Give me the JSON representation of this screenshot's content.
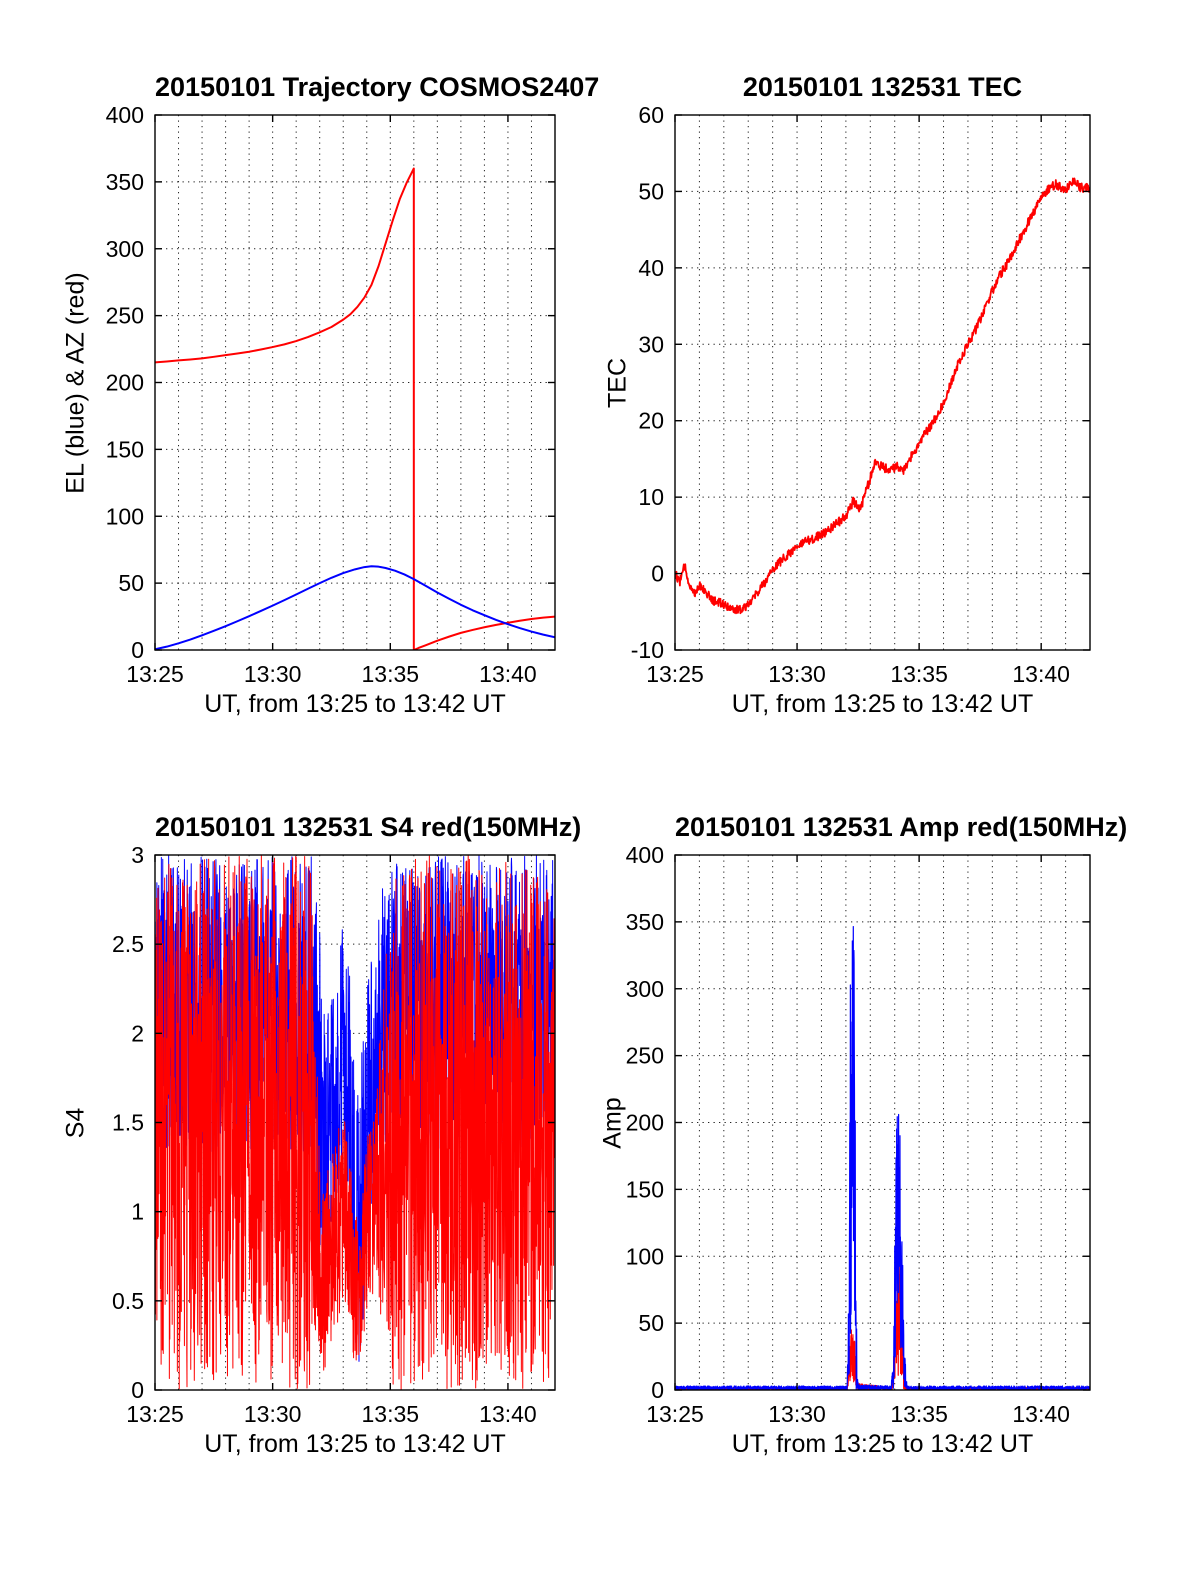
{
  "figure": {
    "background": "#ffffff",
    "axis_color": "#000000",
    "grid_color": "#222222"
  },
  "chart_data": [
    {
      "id": "trajectory",
      "type": "line",
      "title": "20150101 Trajectory COSMOS2407",
      "xlabel": "UT, from 13:25 to 13:42 UT",
      "ylabel": "EL (blue) & AZ (red)",
      "x_unit": "minutes_after_midnight",
      "xlim": [
        805,
        822
      ],
      "ylim": [
        0,
        400
      ],
      "yticks": [
        0,
        50,
        100,
        150,
        200,
        250,
        300,
        350,
        400
      ],
      "xticks": [
        {
          "v": 805,
          "label": "13:25"
        },
        {
          "v": 810,
          "label": "13:30"
        },
        {
          "v": 815,
          "label": "13:35"
        },
        {
          "v": 820,
          "label": "13:40"
        }
      ],
      "minor_x_step": 1,
      "series": [
        {
          "name": "AZ",
          "color": "#ff0000",
          "width": 2,
          "points": [
            [
              805,
              215
            ],
            [
              805.5,
              215.7
            ],
            [
              806,
              216.5
            ],
            [
              806.5,
              217.2
            ],
            [
              807,
              218
            ],
            [
              807.5,
              219.2
            ],
            [
              808,
              220.5
            ],
            [
              808.5,
              221.7
            ],
            [
              809,
              223
            ],
            [
              809.5,
              224.7
            ],
            [
              810,
              226.5
            ],
            [
              810.5,
              228.5
            ],
            [
              811,
              231
            ],
            [
              811.5,
              234
            ],
            [
              812,
              237.5
            ],
            [
              812.5,
              241.5
            ],
            [
              813,
              247
            ],
            [
              813.3,
              251
            ],
            [
              813.6,
              256.5
            ],
            [
              813.9,
              263.5
            ],
            [
              814.2,
              273
            ],
            [
              814.5,
              287
            ],
            [
              814.8,
              304
            ],
            [
              815.1,
              321
            ],
            [
              815.4,
              337
            ],
            [
              815.7,
              349.5
            ],
            [
              815.9,
              356.5
            ],
            [
              816,
              360
            ],
            [
              816,
              0
            ],
            [
              816.2,
              1.5
            ],
            [
              816.5,
              3.5
            ],
            [
              817,
              7
            ],
            [
              817.5,
              10
            ],
            [
              818,
              12.8
            ],
            [
              818.5,
              15
            ],
            [
              819,
              17
            ],
            [
              819.5,
              18.8
            ],
            [
              820,
              20.4
            ],
            [
              820.5,
              21.9
            ],
            [
              821,
              23.2
            ],
            [
              821.5,
              24.2
            ],
            [
              822,
              25
            ]
          ]
        },
        {
          "name": "EL",
          "color": "#0000ff",
          "width": 2,
          "points": [
            [
              805,
              0.5
            ],
            [
              805.5,
              2.5
            ],
            [
              806,
              5
            ],
            [
              806.5,
              7.8
            ],
            [
              807,
              11
            ],
            [
              807.5,
              14.3
            ],
            [
              808,
              17.8
            ],
            [
              808.5,
              21.5
            ],
            [
              809,
              25.3
            ],
            [
              809.5,
              29.2
            ],
            [
              810,
              33.2
            ],
            [
              810.5,
              37.3
            ],
            [
              811,
              41.5
            ],
            [
              811.5,
              45.8
            ],
            [
              812,
              50
            ],
            [
              812.5,
              54
            ],
            [
              813,
              57.5
            ],
            [
              813.5,
              60.3
            ],
            [
              813.9,
              62
            ],
            [
              814.2,
              62.6
            ],
            [
              814.5,
              62.3
            ],
            [
              814.8,
              61.3
            ],
            [
              815.2,
              59.3
            ],
            [
              815.6,
              56.5
            ],
            [
              816,
              53
            ],
            [
              816.5,
              48
            ],
            [
              817,
              43
            ],
            [
              817.5,
              38.3
            ],
            [
              818,
              33.8
            ],
            [
              818.5,
              29.7
            ],
            [
              819,
              26
            ],
            [
              819.5,
              22.5
            ],
            [
              820,
              19.3
            ],
            [
              820.5,
              16.4
            ],
            [
              821,
              13.8
            ],
            [
              821.5,
              11.5
            ],
            [
              822,
              9.5
            ]
          ]
        }
      ]
    },
    {
      "id": "tec",
      "type": "noisy-line",
      "title": "20150101 132531 TEC",
      "xlabel": "UT, from 13:25 to 13:42 UT",
      "ylabel": "TEC",
      "x_unit": "minutes_after_midnight",
      "xlim": [
        805,
        822
      ],
      "ylim": [
        -10,
        60
      ],
      "yticks": [
        -10,
        0,
        10,
        20,
        30,
        40,
        50,
        60
      ],
      "xticks": [
        {
          "v": 805,
          "label": "13:25"
        },
        {
          "v": 810,
          "label": "13:30"
        },
        {
          "v": 815,
          "label": "13:35"
        },
        {
          "v": 820,
          "label": "13:40"
        }
      ],
      "minor_x_step": 1,
      "series": [
        {
          "name": "TEC",
          "color": "#ff0000",
          "width": 1.8,
          "noise": 0.6,
          "step": 0.02,
          "seed": 12,
          "anchors": [
            [
              805,
              0
            ],
            [
              805.2,
              -1
            ],
            [
              805.4,
              1
            ],
            [
              805.6,
              -1.5
            ],
            [
              805.8,
              -2.5
            ],
            [
              806,
              -1.5
            ],
            [
              806.2,
              -2
            ],
            [
              806.5,
              -3.5
            ],
            [
              807,
              -4
            ],
            [
              807.3,
              -4.5
            ],
            [
              807.6,
              -4.8
            ],
            [
              807.9,
              -4.2
            ],
            [
              808.2,
              -3.2
            ],
            [
              808.6,
              -1.5
            ],
            [
              809,
              0.5
            ],
            [
              809.3,
              1.5
            ],
            [
              809.6,
              2.5
            ],
            [
              810,
              3.5
            ],
            [
              810.4,
              4.2
            ],
            [
              810.8,
              4.8
            ],
            [
              811.2,
              5.5
            ],
            [
              811.6,
              6.5
            ],
            [
              812,
              7.5
            ],
            [
              812.3,
              9.5
            ],
            [
              812.6,
              8.5
            ],
            [
              813,
              12.5
            ],
            [
              813.2,
              14.5
            ],
            [
              813.5,
              14
            ],
            [
              813.8,
              13.5
            ],
            [
              814.1,
              14
            ],
            [
              814.4,
              13.5
            ],
            [
              814.7,
              15.5
            ],
            [
              815,
              17
            ],
            [
              815.4,
              19
            ],
            [
              815.8,
              21
            ],
            [
              816.2,
              24
            ],
            [
              816.6,
              27.5
            ],
            [
              817,
              30
            ],
            [
              817.4,
              32.5
            ],
            [
              817.8,
              35.5
            ],
            [
              818.2,
              38.5
            ],
            [
              818.6,
              40.5
            ],
            [
              819,
              43
            ],
            [
              819.4,
              45.5
            ],
            [
              819.8,
              48
            ],
            [
              820.2,
              50
            ],
            [
              820.6,
              51
            ],
            [
              821,
              50
            ],
            [
              821.3,
              51.5
            ],
            [
              821.6,
              50.5
            ],
            [
              822,
              50.5
            ]
          ]
        }
      ]
    },
    {
      "id": "s4",
      "type": "noise-band",
      "title": "20150101 132531 S4 red(150MHz)",
      "xlabel": "UT, from 13:25 to 13:42 UT",
      "ylabel": "S4",
      "x_unit": "minutes_after_midnight",
      "xlim": [
        805,
        822
      ],
      "ylim": [
        0,
        3
      ],
      "yticks": [
        0,
        0.5,
        1,
        1.5,
        2,
        2.5,
        3
      ],
      "xticks": [
        {
          "v": 805,
          "label": "13:25"
        },
        {
          "v": 810,
          "label": "13:30"
        },
        {
          "v": 815,
          "label": "13:35"
        },
        {
          "v": 820,
          "label": "13:40"
        }
      ],
      "minor_x_step": 1,
      "series": [
        {
          "name": "S4-blue",
          "color": "#0000ff",
          "width": 1,
          "step": 0.01,
          "seed": 5,
          "envelope": [
            [
              805,
              1.35,
              3
            ],
            [
              811.7,
              1.3,
              3
            ],
            [
              812,
              0.5,
              2.6
            ],
            [
              812.25,
              0.12,
              2.0
            ],
            [
              812.5,
              0.9,
              2.4
            ],
            [
              813,
              1.2,
              2.6
            ],
            [
              813.45,
              0.3,
              2.2
            ],
            [
              813.7,
              0.1,
              1.8
            ],
            [
              813.95,
              0.6,
              2.2
            ],
            [
              814.3,
              1.1,
              2.5
            ],
            [
              814.7,
              1.3,
              2.9
            ],
            [
              815.2,
              1.35,
              3
            ],
            [
              822,
              1.35,
              3
            ]
          ]
        },
        {
          "name": "S4-red-150MHz",
          "color": "#ff0000",
          "width": 1,
          "step": 0.01,
          "seed": 9,
          "envelope": [
            [
              805,
              0,
              3
            ],
            [
              811.6,
              0,
              3
            ],
            [
              811.9,
              0.2,
              1.8
            ],
            [
              812.2,
              0.1,
              1.1
            ],
            [
              812.6,
              0.3,
              1.5
            ],
            [
              813,
              0.5,
              1.6
            ],
            [
              813.4,
              0.2,
              1.2
            ],
            [
              813.7,
              0.05,
              0.9
            ],
            [
              814,
              0.4,
              1.5
            ],
            [
              814.4,
              0.6,
              1.7
            ],
            [
              814.8,
              0.2,
              2.4
            ],
            [
              815.1,
              0,
              3
            ],
            [
              822,
              0,
              3
            ]
          ]
        }
      ]
    },
    {
      "id": "amp",
      "type": "noise-band",
      "title": "20150101 132531 Amp red(150MHz)",
      "xlabel": "UT, from 13:25 to 13:42 UT",
      "ylabel": "Amp",
      "x_unit": "minutes_after_midnight",
      "xlim": [
        805,
        822
      ],
      "ylim": [
        0,
        400
      ],
      "yticks": [
        0,
        50,
        100,
        150,
        200,
        250,
        300,
        350,
        400
      ],
      "xticks": [
        {
          "v": 805,
          "label": "13:25"
        },
        {
          "v": 810,
          "label": "13:30"
        },
        {
          "v": 815,
          "label": "13:35"
        },
        {
          "v": 820,
          "label": "13:40"
        }
      ],
      "minor_x_step": 1,
      "series": [
        {
          "name": "Amp-red-150MHz",
          "color": "#ff0000",
          "width": 1.2,
          "step": 0.008,
          "seed": 21,
          "envelope": [
            [
              805,
              0,
              2
            ],
            [
              812.05,
              0,
              2
            ],
            [
              812.15,
              0,
              35
            ],
            [
              812.25,
              5,
              52
            ],
            [
              812.35,
              0,
              40
            ],
            [
              812.45,
              0,
              5
            ],
            [
              813.9,
              0,
              2
            ],
            [
              814,
              0,
              50
            ],
            [
              814.1,
              10,
              100
            ],
            [
              814.2,
              5,
              95
            ],
            [
              814.3,
              0,
              60
            ],
            [
              814.4,
              0,
              8
            ],
            [
              814.5,
              0,
              2
            ],
            [
              822,
              0,
              2
            ]
          ]
        },
        {
          "name": "Amp-blue",
          "color": "#0000ff",
          "width": 1.2,
          "step": 0.008,
          "seed": 33,
          "envelope": [
            [
              805,
              0,
              3
            ],
            [
              812.05,
              0,
              3
            ],
            [
              812.12,
              0,
              80
            ],
            [
              812.18,
              30,
              325
            ],
            [
              812.24,
              80,
              360
            ],
            [
              812.3,
              100,
              355
            ],
            [
              812.36,
              20,
              300
            ],
            [
              812.42,
              0,
              60
            ],
            [
              812.5,
              0,
              4
            ],
            [
              813.85,
              0,
              3
            ],
            [
              813.95,
              0,
              30
            ],
            [
              814.05,
              30,
              190
            ],
            [
              814.12,
              60,
              212
            ],
            [
              814.2,
              40,
              205
            ],
            [
              814.3,
              10,
              120
            ],
            [
              814.4,
              0,
              30
            ],
            [
              814.5,
              0,
              3
            ],
            [
              822,
              0,
              3
            ]
          ]
        }
      ]
    }
  ]
}
